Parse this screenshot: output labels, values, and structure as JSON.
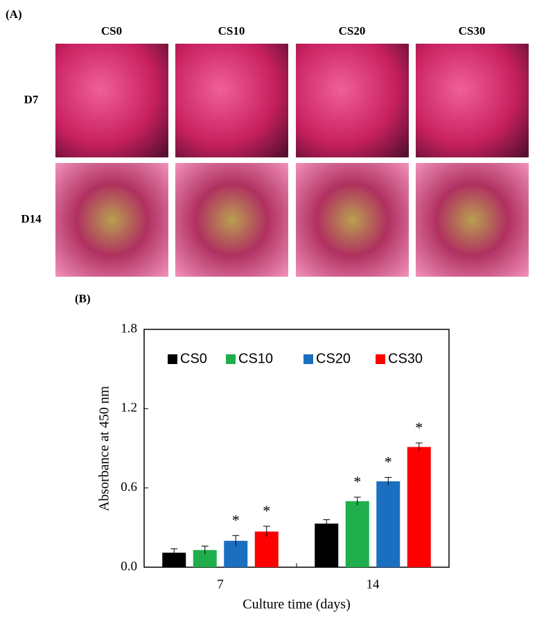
{
  "panel_a": {
    "label": "(A)",
    "columns": [
      "CS0",
      "CS10",
      "CS20",
      "CS30"
    ],
    "rows": [
      "D7",
      "D14"
    ]
  },
  "chart_data": {
    "type": "bar",
    "panel_label": "(B)",
    "x_label": "Culture time (days)",
    "y_label": "Absorbance at 450 nm",
    "categories": [
      "7",
      "14"
    ],
    "series": [
      {
        "name": "CS0",
        "color": "#000000",
        "values": [
          0.11,
          0.33
        ],
        "errors": [
          0.03,
          0.03
        ],
        "annotations": [
          null,
          null
        ]
      },
      {
        "name": "CS10",
        "color": "#1fae4b",
        "values": [
          0.13,
          0.5
        ],
        "errors": [
          0.03,
          0.03
        ],
        "annotations": [
          null,
          "*"
        ]
      },
      {
        "name": "CS20",
        "color": "#1a6fc0",
        "values": [
          0.2,
          0.65
        ],
        "errors": [
          0.04,
          0.03
        ],
        "annotations": [
          "*",
          "*"
        ]
      },
      {
        "name": "CS30",
        "color": "#ff0000",
        "values": [
          0.27,
          0.91
        ],
        "errors": [
          0.04,
          0.03
        ],
        "annotations": [
          "*",
          "*"
        ]
      }
    ],
    "ylim": [
      0,
      1.8
    ],
    "yticks": [
      {
        "value": 0,
        "label": "0.0"
      },
      {
        "value": 0.6,
        "label": "0.6"
      },
      {
        "value": 1.2,
        "label": "1.2"
      },
      {
        "value": 1.8,
        "label": "1.8"
      }
    ],
    "legend": "top"
  }
}
